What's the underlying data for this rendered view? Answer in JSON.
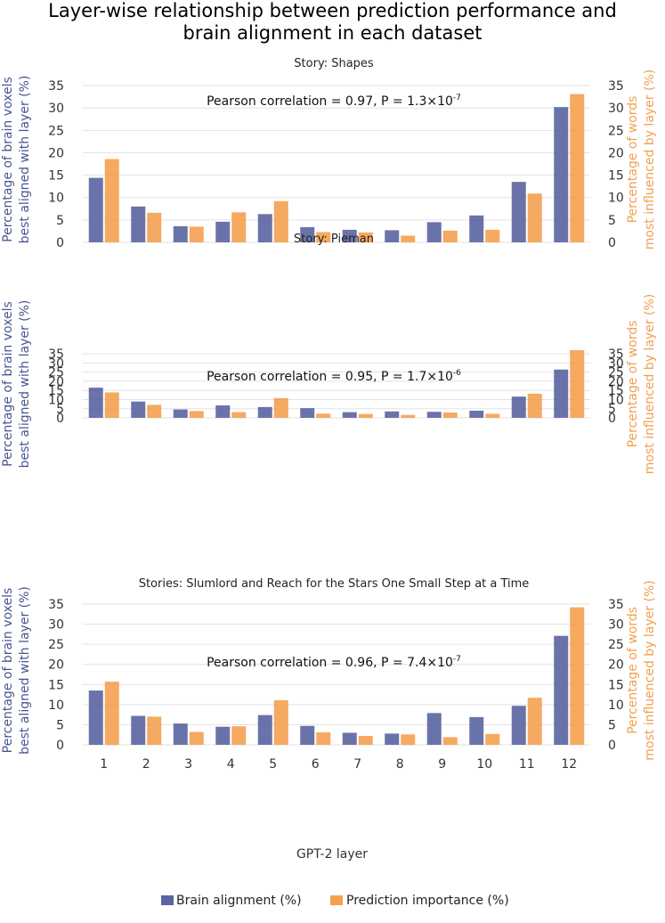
{
  "figure": {
    "title_line1": "Layer-wise relationship between prediction performance and",
    "title_line2": "brain alignment in each dataset",
    "xlabel": "GPT-2 layer",
    "left_ylabel_line1": "Percentage of brain voxels",
    "left_ylabel_line2": "best aligned with layer (%)",
    "right_ylabel_line1": "Percentage of words",
    "right_ylabel_line2": "most influenced by layer (%)",
    "legend": [
      "Brain alignment (%)",
      "Prediction importance (%)"
    ],
    "colors": {
      "brain": "#5a64a0",
      "prediction": "#f5a04f",
      "left_axis_text": "#4a5490",
      "right_axis_text": "#f0a050"
    }
  },
  "chart_data": [
    {
      "type": "bar",
      "title": "Story: Shapes",
      "annotation_prefix": "Pearson correlation = 0.97, P = 1.3×10",
      "annotation_exp": "-7",
      "categories": [
        "1",
        "2",
        "3",
        "4",
        "5",
        "6",
        "7",
        "8",
        "9",
        "10",
        "11",
        "12"
      ],
      "series": [
        {
          "name": "Brain alignment (%)",
          "values": [
            14.4,
            8.0,
            3.6,
            4.6,
            6.3,
            3.4,
            2.8,
            2.7,
            4.5,
            6.0,
            13.5,
            30.2
          ]
        },
        {
          "name": "Prediction importance (%)",
          "values": [
            18.6,
            6.6,
            3.5,
            6.7,
            9.2,
            2.3,
            2.2,
            1.5,
            2.6,
            2.8,
            10.9,
            33.1
          ]
        }
      ],
      "ylim": [
        0,
        37
      ],
      "yticks": [
        0,
        5,
        10,
        15,
        20,
        25,
        30,
        35
      ]
    },
    {
      "type": "bar",
      "title": "Story: Pieman",
      "annotation_prefix": "Pearson correlation = 0.95, P = 1.7×10",
      "annotation_exp": "-6",
      "categories": [
        "1",
        "2",
        "3",
        "4",
        "5",
        "6",
        "7",
        "8",
        "9",
        "10",
        "11",
        "12"
      ],
      "series": [
        {
          "name": "Brain alignment (%)",
          "values": [
            16.5,
            8.9,
            4.6,
            6.8,
            5.9,
            5.3,
            3.1,
            3.5,
            3.3,
            3.9,
            11.6,
            26.4
          ]
        },
        {
          "name": "Prediction importance (%)",
          "values": [
            13.9,
            7.1,
            3.7,
            3.1,
            10.8,
            2.3,
            2.1,
            1.6,
            2.9,
            2.2,
            13.2,
            37.0
          ]
        }
      ],
      "ylim": [
        0,
        37
      ],
      "yticks": [
        0,
        5,
        10,
        15,
        20,
        25,
        30,
        35
      ]
    },
    {
      "type": "bar",
      "title": "Stories: Slumlord and Reach for the Stars One Small Step at a Time",
      "annotation_prefix": "Pearson correlation = 0.96, P = 7.4×10",
      "annotation_exp": "-7",
      "categories": [
        "1",
        "2",
        "3",
        "4",
        "5",
        "6",
        "7",
        "8",
        "9",
        "10",
        "11",
        "12"
      ],
      "series": [
        {
          "name": "Brain alignment (%)",
          "values": [
            13.5,
            7.2,
            5.3,
            4.5,
            7.4,
            4.7,
            3.0,
            2.8,
            7.9,
            6.9,
            9.7,
            27.1
          ]
        },
        {
          "name": "Prediction importance (%)",
          "values": [
            15.7,
            7.0,
            3.2,
            4.6,
            11.1,
            3.1,
            2.2,
            2.6,
            1.9,
            2.7,
            11.7,
            34.2
          ]
        }
      ],
      "ylim": [
        0,
        37
      ],
      "yticks": [
        0,
        5,
        10,
        15,
        20,
        25,
        30,
        35
      ]
    }
  ]
}
